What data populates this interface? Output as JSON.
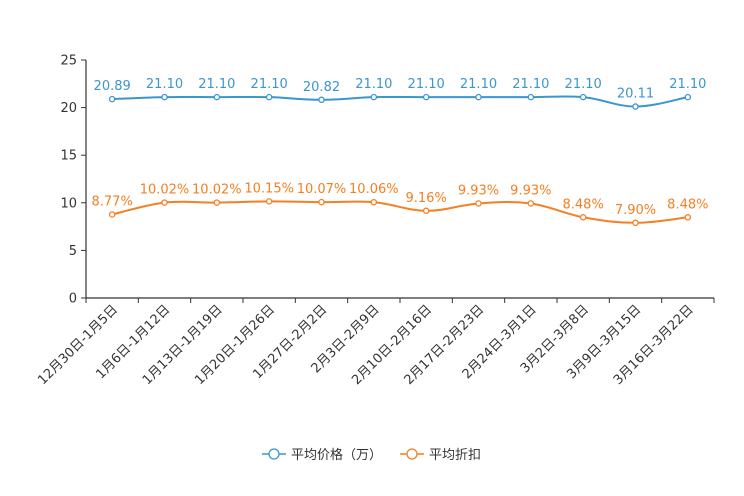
{
  "chart_data": {
    "type": "line",
    "categories": [
      "12月30日-1月5日",
      "1月6日-1月12日",
      "1月13日-1月19日",
      "1月20日-1月26日",
      "1月27日-2月2日",
      "2月3日-2月9日",
      "2月10日-2月16日",
      "2月17日-2月23日",
      "2月24日-3月1日",
      "3月2日-3月8日",
      "3月9日-3月15日",
      "3月16日-3月22日"
    ],
    "series": [
      {
        "name": "平均价格（万）",
        "color": "#3a96cf",
        "values": [
          20.89,
          21.1,
          21.1,
          21.1,
          20.82,
          21.1,
          21.1,
          21.1,
          21.1,
          21.1,
          20.11,
          21.1
        ],
        "labels": [
          "20.89",
          "21.10",
          "21.10",
          "21.10",
          "20.82",
          "21.10",
          "21.10",
          "21.10",
          "21.10",
          "21.10",
          "20.11",
          "21.10"
        ]
      },
      {
        "name": "平均折扣",
        "color": "#f57f22",
        "values": [
          8.77,
          10.02,
          10.02,
          10.15,
          10.07,
          10.06,
          9.16,
          9.93,
          9.93,
          8.48,
          7.9,
          8.48
        ],
        "labels": [
          "8.77%",
          "10.02%",
          "10.02%",
          "10.15%",
          "10.07%",
          "10.06%",
          "9.16%",
          "9.93%",
          "9.93%",
          "8.48%",
          "7.90%",
          "8.48%"
        ]
      }
    ],
    "yticks": [
      "0",
      "5",
      "10",
      "15",
      "20",
      "25"
    ],
    "ylim": [
      0,
      25
    ],
    "legend_position": "bottom-center",
    "grid": false
  }
}
